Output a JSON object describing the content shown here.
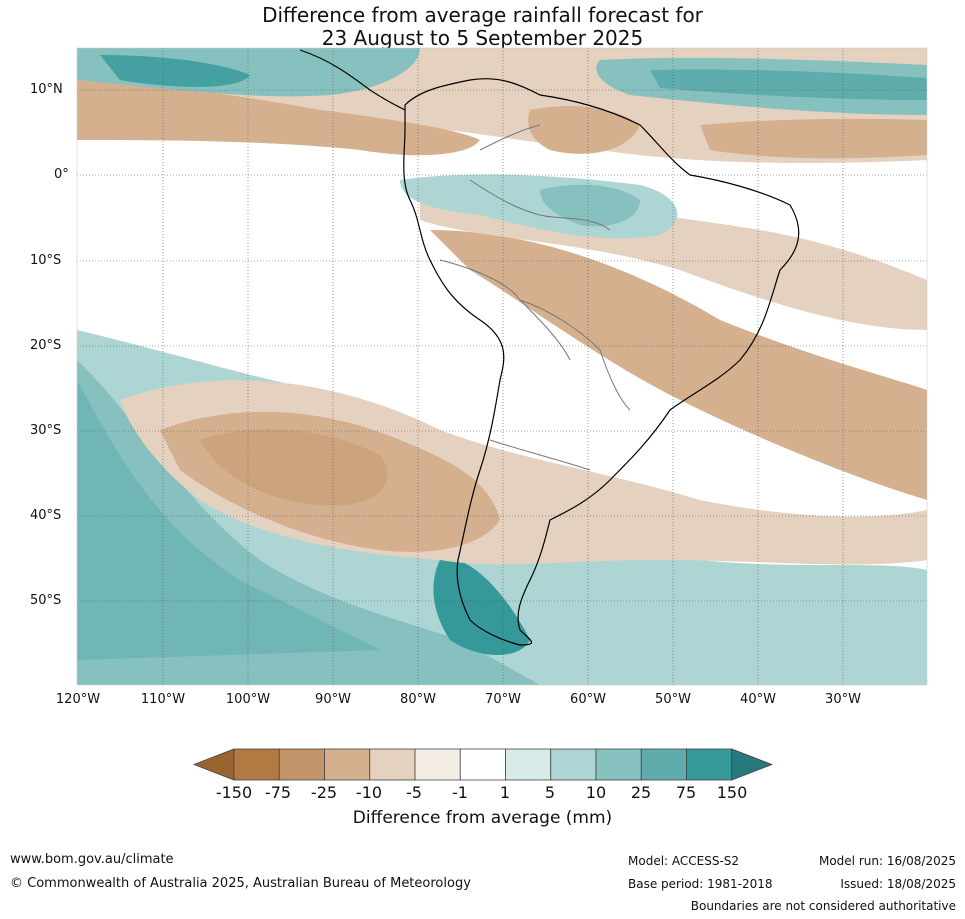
{
  "title": {
    "line1": "Difference from average rainfall forecast for",
    "line2": "23 August to 5 September 2025"
  },
  "map": {
    "lat_ticks": [
      "10°N",
      "0°",
      "10°S",
      "20°S",
      "30°S",
      "40°S",
      "50°S"
    ],
    "lon_ticks": [
      "120°W",
      "110°W",
      "100°W",
      "90°W",
      "80°W",
      "70°W",
      "60°W",
      "50°W",
      "40°W",
      "30°W"
    ]
  },
  "colorbar": {
    "label": "Difference from average (mm)",
    "ticks": [
      "-150",
      "-75",
      "-25",
      "-10",
      "-5",
      "-1",
      "1",
      "5",
      "10",
      "25",
      "75",
      "150"
    ],
    "colors": [
      "#9a6431",
      "#b27a42",
      "#c4956a",
      "#d5b08e",
      "#e4d1bf",
      "#f3ede6",
      "#ffffff",
      "#d6ebea",
      "#acd5d4",
      "#86c0bf",
      "#5eadac",
      "#35999a",
      "#277a7b"
    ]
  },
  "footer": {
    "website": "www.bom.gov.au/climate",
    "copyright": "© Commonwealth of Australia 2025, Australian Bureau of Meteorology",
    "model": "Model: ACCESS-S2",
    "base_period": "Base period: 1981-2018",
    "model_run": "Model run: 16/08/2025",
    "issued": "Issued: 18/08/2025",
    "disclaimer": "Boundaries are not considered authoritative"
  }
}
